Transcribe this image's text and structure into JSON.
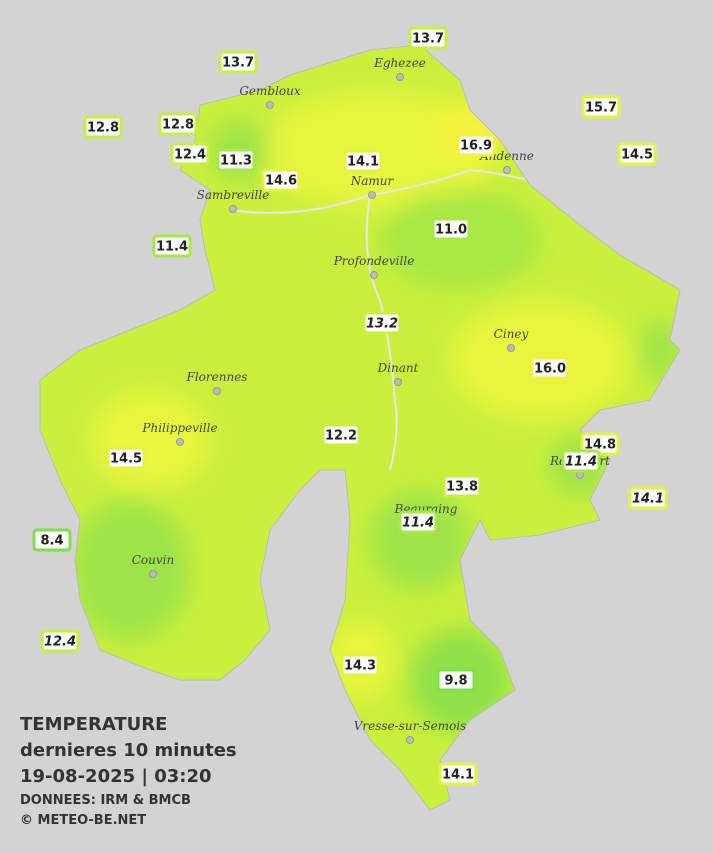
{
  "title": {
    "line1": "TEMPERATURE",
    "line2": "dernieres 10 minutes",
    "line3": "19-08-2025  |  03:20",
    "source": "DONNEES: IRM & BMCB",
    "copyright": "© METEO-BE.NET"
  },
  "cities": [
    "Gembloux",
    "Eghezee",
    "Andenne",
    "Namur",
    "Sambreville",
    "Profondeville",
    "Ciney",
    "Dinant",
    "Florennes",
    "Philippeville",
    "Rochefort",
    "Beauraing",
    "Couvin",
    "Vresse-sur-Semois"
  ],
  "stations": [
    "13.7",
    "13.7",
    "12.8",
    "12.8",
    "12.4",
    "11.3",
    "14.6",
    "14.1",
    "16.9",
    "15.7",
    "14.5",
    "11.0",
    "11.4",
    "13.2",
    "16.0",
    "12.2",
    "14.5",
    "14.8",
    "11.4",
    "13.8",
    "14.1",
    "11.4",
    "8.4",
    "12.4",
    "14.3",
    "9.8",
    "14.1"
  ]
}
